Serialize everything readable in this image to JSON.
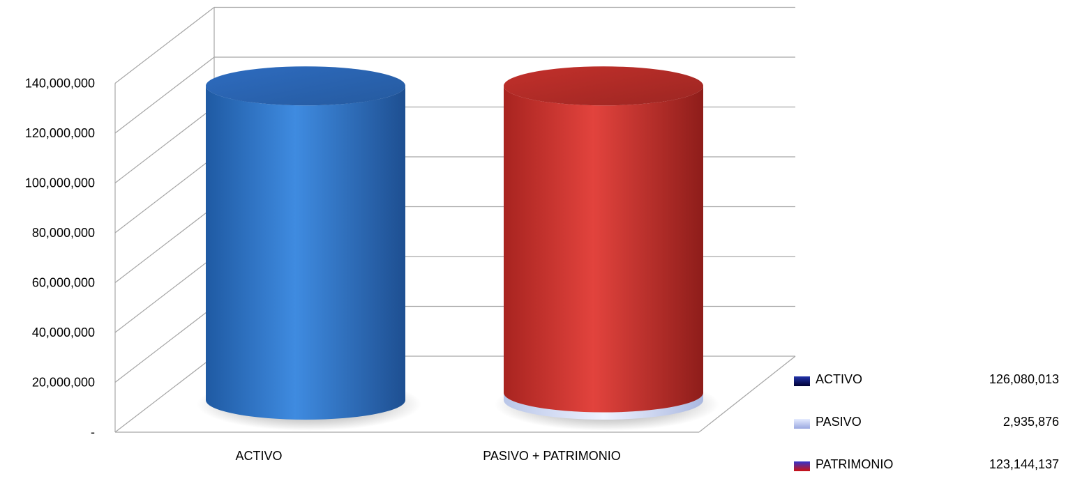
{
  "chart_data": {
    "type": "bar",
    "style": "3d-cylinder",
    "categories": [
      "ACTIVO",
      "PASIVO + PATRIMONIO"
    ],
    "series": [
      {
        "name": "ACTIVO",
        "values": [
          126080013,
          0
        ],
        "color": "#2f6fbf"
      },
      {
        "name": "PASIVO",
        "values": [
          0,
          2935876
        ],
        "color": "#c8d4f0"
      },
      {
        "name": "PATRIMONIO",
        "values": [
          0,
          123144137
        ],
        "color": "#c9302c"
      }
    ],
    "ylim": [
      0,
      140000000
    ],
    "yticks": [
      {
        "value": 0,
        "label": "-"
      },
      {
        "value": 20000000,
        "label": "20,000,000"
      },
      {
        "value": 40000000,
        "label": "40,000,000"
      },
      {
        "value": 60000000,
        "label": "60,000,000"
      },
      {
        "value": 80000000,
        "label": "80,000,000"
      },
      {
        "value": 100000000,
        "label": "100,000,000"
      },
      {
        "value": 120000000,
        "label": "120,000,000"
      },
      {
        "value": 140000000,
        "label": "140,000,000"
      }
    ],
    "grid": true,
    "legend_position": "bottom-right",
    "legend": [
      {
        "label": "ACTIVO",
        "value": "126,080,013",
        "color_top": "#2233aa",
        "color_bottom": "#000033"
      },
      {
        "label": "PASIVO",
        "value": "2,935,876",
        "color_top": "#e6ecff",
        "color_bottom": "#9aa8e0"
      },
      {
        "label": "PATRIMONIO",
        "value": "123,144,137",
        "color_top": "#3333cc",
        "color_bottom": "#cc1111"
      }
    ]
  }
}
